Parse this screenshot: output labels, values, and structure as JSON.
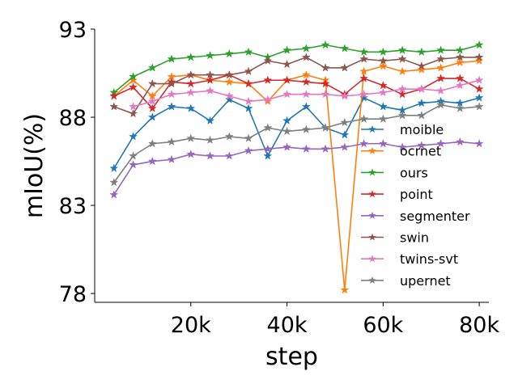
{
  "chart_data": {
    "type": "line",
    "xlabel": "step",
    "ylabel": "mIoU(%)",
    "xlim": [
      0,
      82000
    ],
    "ylim": [
      77.5,
      93
    ],
    "x_ticks": [
      20000,
      40000,
      60000,
      80000
    ],
    "x_tick_labels": [
      "20k",
      "40k",
      "60k",
      "80k"
    ],
    "y_ticks": [
      78,
      83,
      88,
      93
    ],
    "y_tick_labels": [
      "78",
      "83",
      "88",
      "93"
    ],
    "grid": false,
    "legend_position": "right",
    "x": [
      4000,
      8000,
      12000,
      16000,
      20000,
      24000,
      28000,
      32000,
      36000,
      40000,
      44000,
      48000,
      52000,
      56000,
      60000,
      64000,
      68000,
      72000,
      76000,
      80000
    ],
    "series": [
      {
        "name": "moible",
        "color": "#1f77b4",
        "values": [
          85.1,
          86.9,
          88.0,
          88.6,
          88.5,
          87.8,
          89.0,
          88.5,
          85.8,
          87.8,
          88.6,
          87.4,
          87.0,
          89.1,
          88.6,
          88.4,
          88.8,
          88.9,
          88.8,
          89.1
        ]
      },
      {
        "name": "ocrnet",
        "color": "#ff7f0e",
        "values": [
          89.2,
          90.1,
          89.2,
          90.3,
          90.4,
          90.1,
          90.0,
          89.9,
          88.9,
          90.1,
          90.4,
          90.1,
          78.2,
          90.6,
          90.9,
          90.6,
          90.7,
          90.8,
          91.1,
          91.2
        ]
      },
      {
        "name": "ours",
        "color": "#2ca02c",
        "values": [
          89.4,
          90.3,
          90.8,
          91.3,
          91.4,
          91.5,
          91.6,
          91.7,
          91.4,
          91.8,
          91.9,
          92.1,
          91.9,
          91.7,
          91.7,
          91.8,
          91.7,
          91.8,
          91.8,
          92.1
        ]
      },
      {
        "name": "point",
        "color": "#d62728",
        "values": [
          89.2,
          89.7,
          88.5,
          90.0,
          89.9,
          90.1,
          90.4,
          89.9,
          90.1,
          90.1,
          90.0,
          89.9,
          89.3,
          90.2,
          89.8,
          89.3,
          89.6,
          90.2,
          90.2,
          89.6
        ]
      },
      {
        "name": "segmenter",
        "color": "#9467bd",
        "values": [
          83.6,
          85.3,
          85.5,
          85.6,
          85.9,
          85.8,
          85.8,
          86.1,
          86.2,
          86.3,
          86.2,
          86.2,
          86.3,
          86.5,
          86.5,
          86.3,
          86.4,
          86.5,
          86.6,
          86.5
        ]
      },
      {
        "name": "swin",
        "color": "#8c564b",
        "values": [
          88.6,
          88.2,
          89.9,
          89.9,
          90.4,
          90.4,
          90.4,
          90.6,
          91.2,
          91.0,
          91.4,
          90.8,
          90.8,
          91.3,
          91.2,
          91.3,
          90.9,
          91.3,
          91.4,
          91.4
        ]
      },
      {
        "name": "twins-svt",
        "color": "#e377c2",
        "values": [
          null,
          88.6,
          88.9,
          89.3,
          89.4,
          89.5,
          89.2,
          88.9,
          89.0,
          89.3,
          89.3,
          89.3,
          89.2,
          89.3,
          89.4,
          89.6,
          89.6,
          89.5,
          89.8,
          90.1
        ]
      },
      {
        "name": "upernet",
        "color": "#7f7f7f",
        "values": [
          84.3,
          85.8,
          86.5,
          86.6,
          86.8,
          86.7,
          86.9,
          86.8,
          87.4,
          87.2,
          87.3,
          87.4,
          87.7,
          87.9,
          87.9,
          88.1,
          88.1,
          88.7,
          88.5,
          88.6
        ]
      }
    ]
  }
}
